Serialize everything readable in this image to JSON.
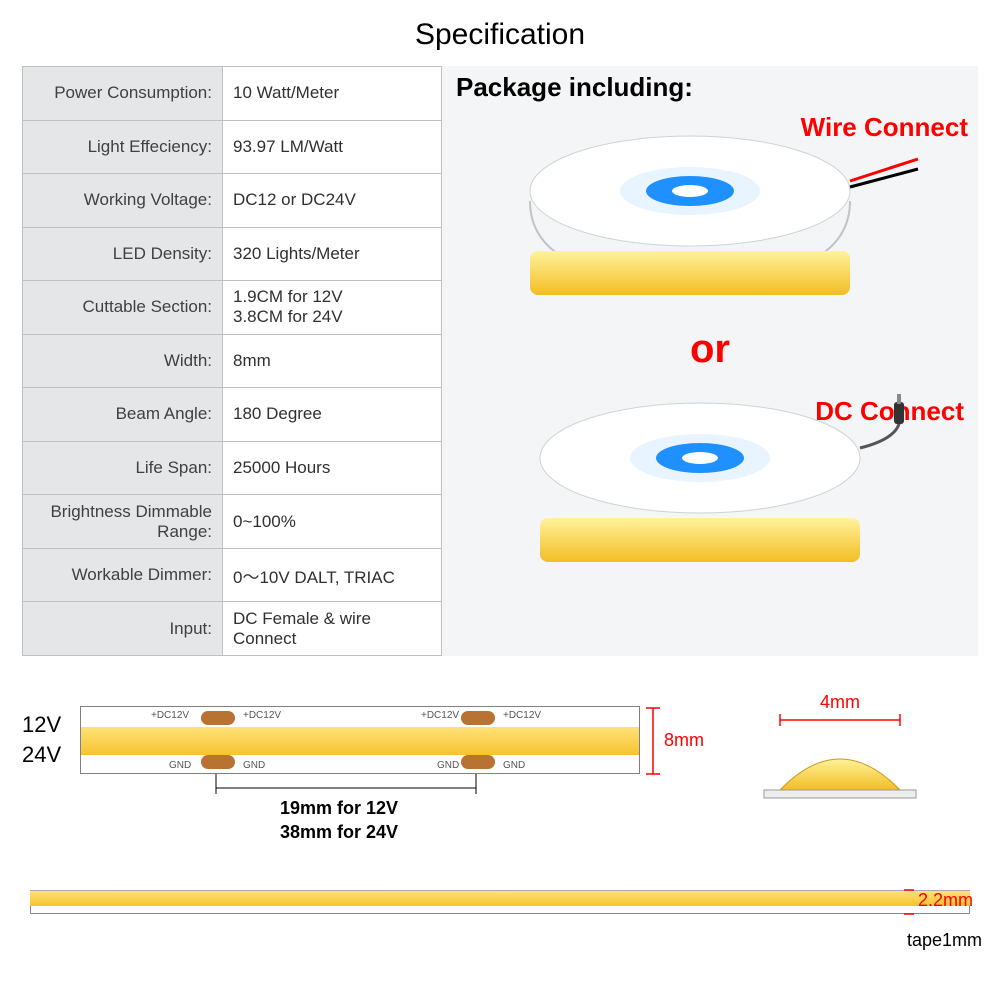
{
  "title": "Specification",
  "specs": [
    {
      "label": "Power Consumption:",
      "value": "10 Watt/Meter"
    },
    {
      "label": "Light Effeciency:",
      "value": "93.97 LM/Watt"
    },
    {
      "label": "Working Voltage:",
      "value": "DC12 or DC24V"
    },
    {
      "label": "LED Density:",
      "value": "320 Lights/Meter"
    },
    {
      "label": "Cuttable Section:",
      "value": "1.9CM for 12V\n3.8CM for 24V"
    },
    {
      "label": "Width:",
      "value": "8mm"
    },
    {
      "label": "Beam Angle:",
      "value": "180 Degree"
    },
    {
      "label": "Life Span:",
      "value": "25000 Hours"
    },
    {
      "label": "Brightness Dimmable Range:",
      "value": "0~100%"
    },
    {
      "label": "Workable Dimmer:",
      "value": "0～10V DALT, TRIAC"
    },
    {
      "label": "Input:",
      "value": "DC Female & wire Connect"
    }
  ],
  "package": {
    "title": "Package including:",
    "option1": "Wire Connect",
    "or": "or",
    "option2": "DC Connect"
  },
  "diagram": {
    "v12": "12V",
    "v24": "24V",
    "dc_label": "+DC12V",
    "gnd_label": "GND",
    "width_dim": "8mm",
    "cut_12v": "19mm for 12V",
    "cut_24v": "38mm for 24V",
    "dome_width": "4mm",
    "strip_height": "2.2mm",
    "tape_label": "tape1mm"
  },
  "colors": {
    "reel_core": "#1e90ff",
    "reel_rim": "#ffffff",
    "led_yellow_top": "#ffe27a",
    "led_yellow_bot": "#f7c22e",
    "pad": "#b87333",
    "red": "#ff0000"
  }
}
